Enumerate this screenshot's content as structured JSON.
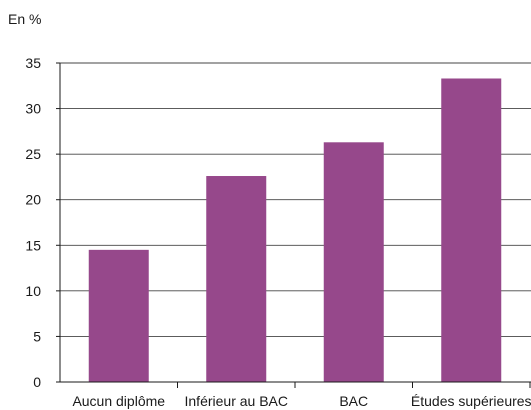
{
  "chart_data": {
    "type": "bar",
    "unit_label": "En %",
    "categories": [
      "Aucun diplôme",
      "Inférieur au BAC",
      "BAC",
      "Études supérieures"
    ],
    "values": [
      14.5,
      22.6,
      26.3,
      33.3
    ],
    "ylim": [
      0,
      35
    ],
    "yticks": [
      0,
      5,
      10,
      15,
      20,
      25,
      30,
      35
    ],
    "grid": true,
    "bar_color": "#96488b",
    "axis_color": "#1a1a1a"
  }
}
